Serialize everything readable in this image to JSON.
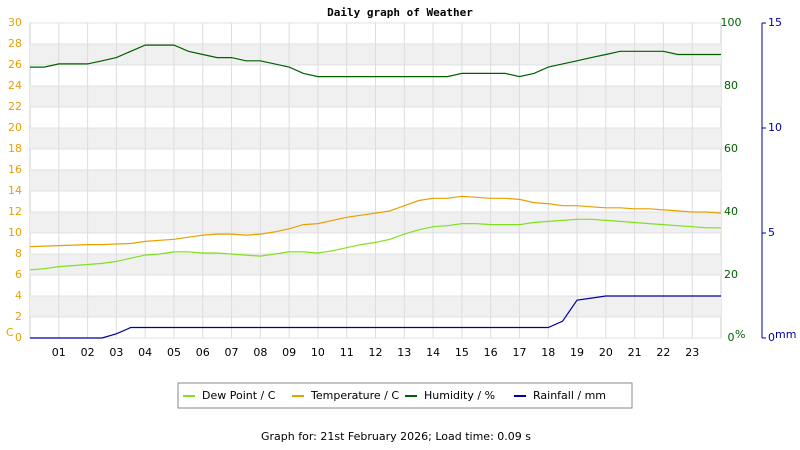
{
  "chart_data": {
    "type": "line",
    "title": "Daily graph of Weather",
    "footer": "Graph for: 21st February 2026; Load time: 0.09 s",
    "y_label": "C",
    "y2_label": "%",
    "y3_label": "mm",
    "x": [
      0,
      0.5,
      1,
      1.5,
      2,
      2.5,
      3,
      3.5,
      4,
      4.5,
      5,
      5.5,
      6,
      6.5,
      7,
      7.5,
      8,
      8.5,
      9,
      9.5,
      10,
      10.5,
      11,
      11.5,
      12,
      12.5,
      13,
      13.5,
      14,
      14.5,
      15,
      15.5,
      16,
      16.5,
      17,
      17.5,
      18,
      18.5,
      19,
      19.5,
      20,
      20.5,
      21,
      21.5,
      22,
      22.5,
      23,
      23.5,
      24
    ],
    "xlim": [
      0,
      24
    ],
    "xticks": [
      {
        "value": 1,
        "label": "01"
      },
      {
        "value": 2,
        "label": "02"
      },
      {
        "value": 3,
        "label": "03"
      },
      {
        "value": 4,
        "label": "04"
      },
      {
        "value": 5,
        "label": "05"
      },
      {
        "value": 6,
        "label": "06"
      },
      {
        "value": 7,
        "label": "07"
      },
      {
        "value": 8,
        "label": "08"
      },
      {
        "value": 9,
        "label": "09"
      },
      10,
      11,
      12,
      13,
      14,
      15,
      16,
      17,
      18,
      19,
      20,
      21,
      22,
      23
    ],
    "ylim": [
      0,
      30
    ],
    "yticks": [
      0,
      2,
      4,
      6,
      8,
      10,
      12,
      14,
      16,
      18,
      20,
      22,
      24,
      26,
      28,
      30
    ],
    "y2lim": [
      0,
      100
    ],
    "y2ticks": [
      0,
      20,
      40,
      60,
      80,
      100
    ],
    "y3lim": [
      0,
      15
    ],
    "y3ticks": [
      0,
      5,
      10,
      15
    ],
    "grid": true,
    "series": [
      {
        "name": "Dew Point / C",
        "color": "#80e020",
        "values": [
          6.5,
          6.6,
          6.8,
          6.9,
          7.0,
          7.1,
          7.3,
          7.6,
          7.9,
          8.0,
          8.2,
          8.2,
          8.1,
          8.1,
          8.0,
          7.9,
          7.8,
          8.0,
          8.2,
          8.2,
          8.1,
          8.3,
          8.6,
          8.9,
          9.1,
          9.4,
          9.9,
          10.3,
          10.6,
          10.7,
          10.9,
          10.9,
          10.8,
          10.8,
          10.8,
          11.0,
          11.1,
          11.2,
          11.3,
          11.3,
          11.2,
          11.1,
          11.0,
          10.9,
          10.8,
          10.7,
          10.6,
          10.5,
          10.5
        ]
      },
      {
        "name": "Temperature / C",
        "color": "#e8a000",
        "values": [
          8.7,
          8.75,
          8.8,
          8.85,
          8.9,
          8.9,
          8.95,
          9.0,
          9.2,
          9.3,
          9.4,
          9.6,
          9.8,
          9.9,
          9.9,
          9.8,
          9.9,
          10.1,
          10.4,
          10.8,
          10.9,
          11.2,
          11.5,
          11.7,
          11.9,
          12.1,
          12.6,
          13.1,
          13.3,
          13.3,
          13.5,
          13.4,
          13.3,
          13.3,
          13.2,
          12.9,
          12.8,
          12.6,
          12.6,
          12.5,
          12.4,
          12.4,
          12.3,
          12.3,
          12.2,
          12.1,
          12.0,
          12.0,
          11.9
        ]
      },
      {
        "name": "Humidity / %",
        "color": "#006000",
        "axis": "y2",
        "values": [
          86,
          86,
          87,
          87,
          87,
          88,
          89,
          91,
          93,
          93,
          93,
          91,
          90,
          89,
          89,
          88,
          88,
          87,
          86,
          84,
          83,
          83,
          83,
          83,
          83,
          83,
          83,
          83,
          83,
          83,
          84,
          84,
          84,
          84,
          83,
          84,
          86,
          87,
          88,
          89,
          90,
          91,
          91,
          91,
          91,
          90,
          90,
          90,
          90
        ]
      },
      {
        "name": "Rainfall / mm",
        "color": "#0000a0",
        "axis": "y3",
        "values": [
          0,
          0,
          0,
          0,
          0,
          0,
          0.2,
          0.5,
          0.5,
          0.5,
          0.5,
          0.5,
          0.5,
          0.5,
          0.5,
          0.5,
          0.5,
          0.5,
          0.5,
          0.5,
          0.5,
          0.5,
          0.5,
          0.5,
          0.5,
          0.5,
          0.5,
          0.5,
          0.5,
          0.5,
          0.5,
          0.5,
          0.5,
          0.5,
          0.5,
          0.5,
          0.5,
          0.8,
          1.8,
          1.9,
          2.0,
          2.0,
          2.0,
          2.0,
          2.0,
          2.0,
          2.0,
          2.0,
          2.0
        ]
      }
    ]
  }
}
